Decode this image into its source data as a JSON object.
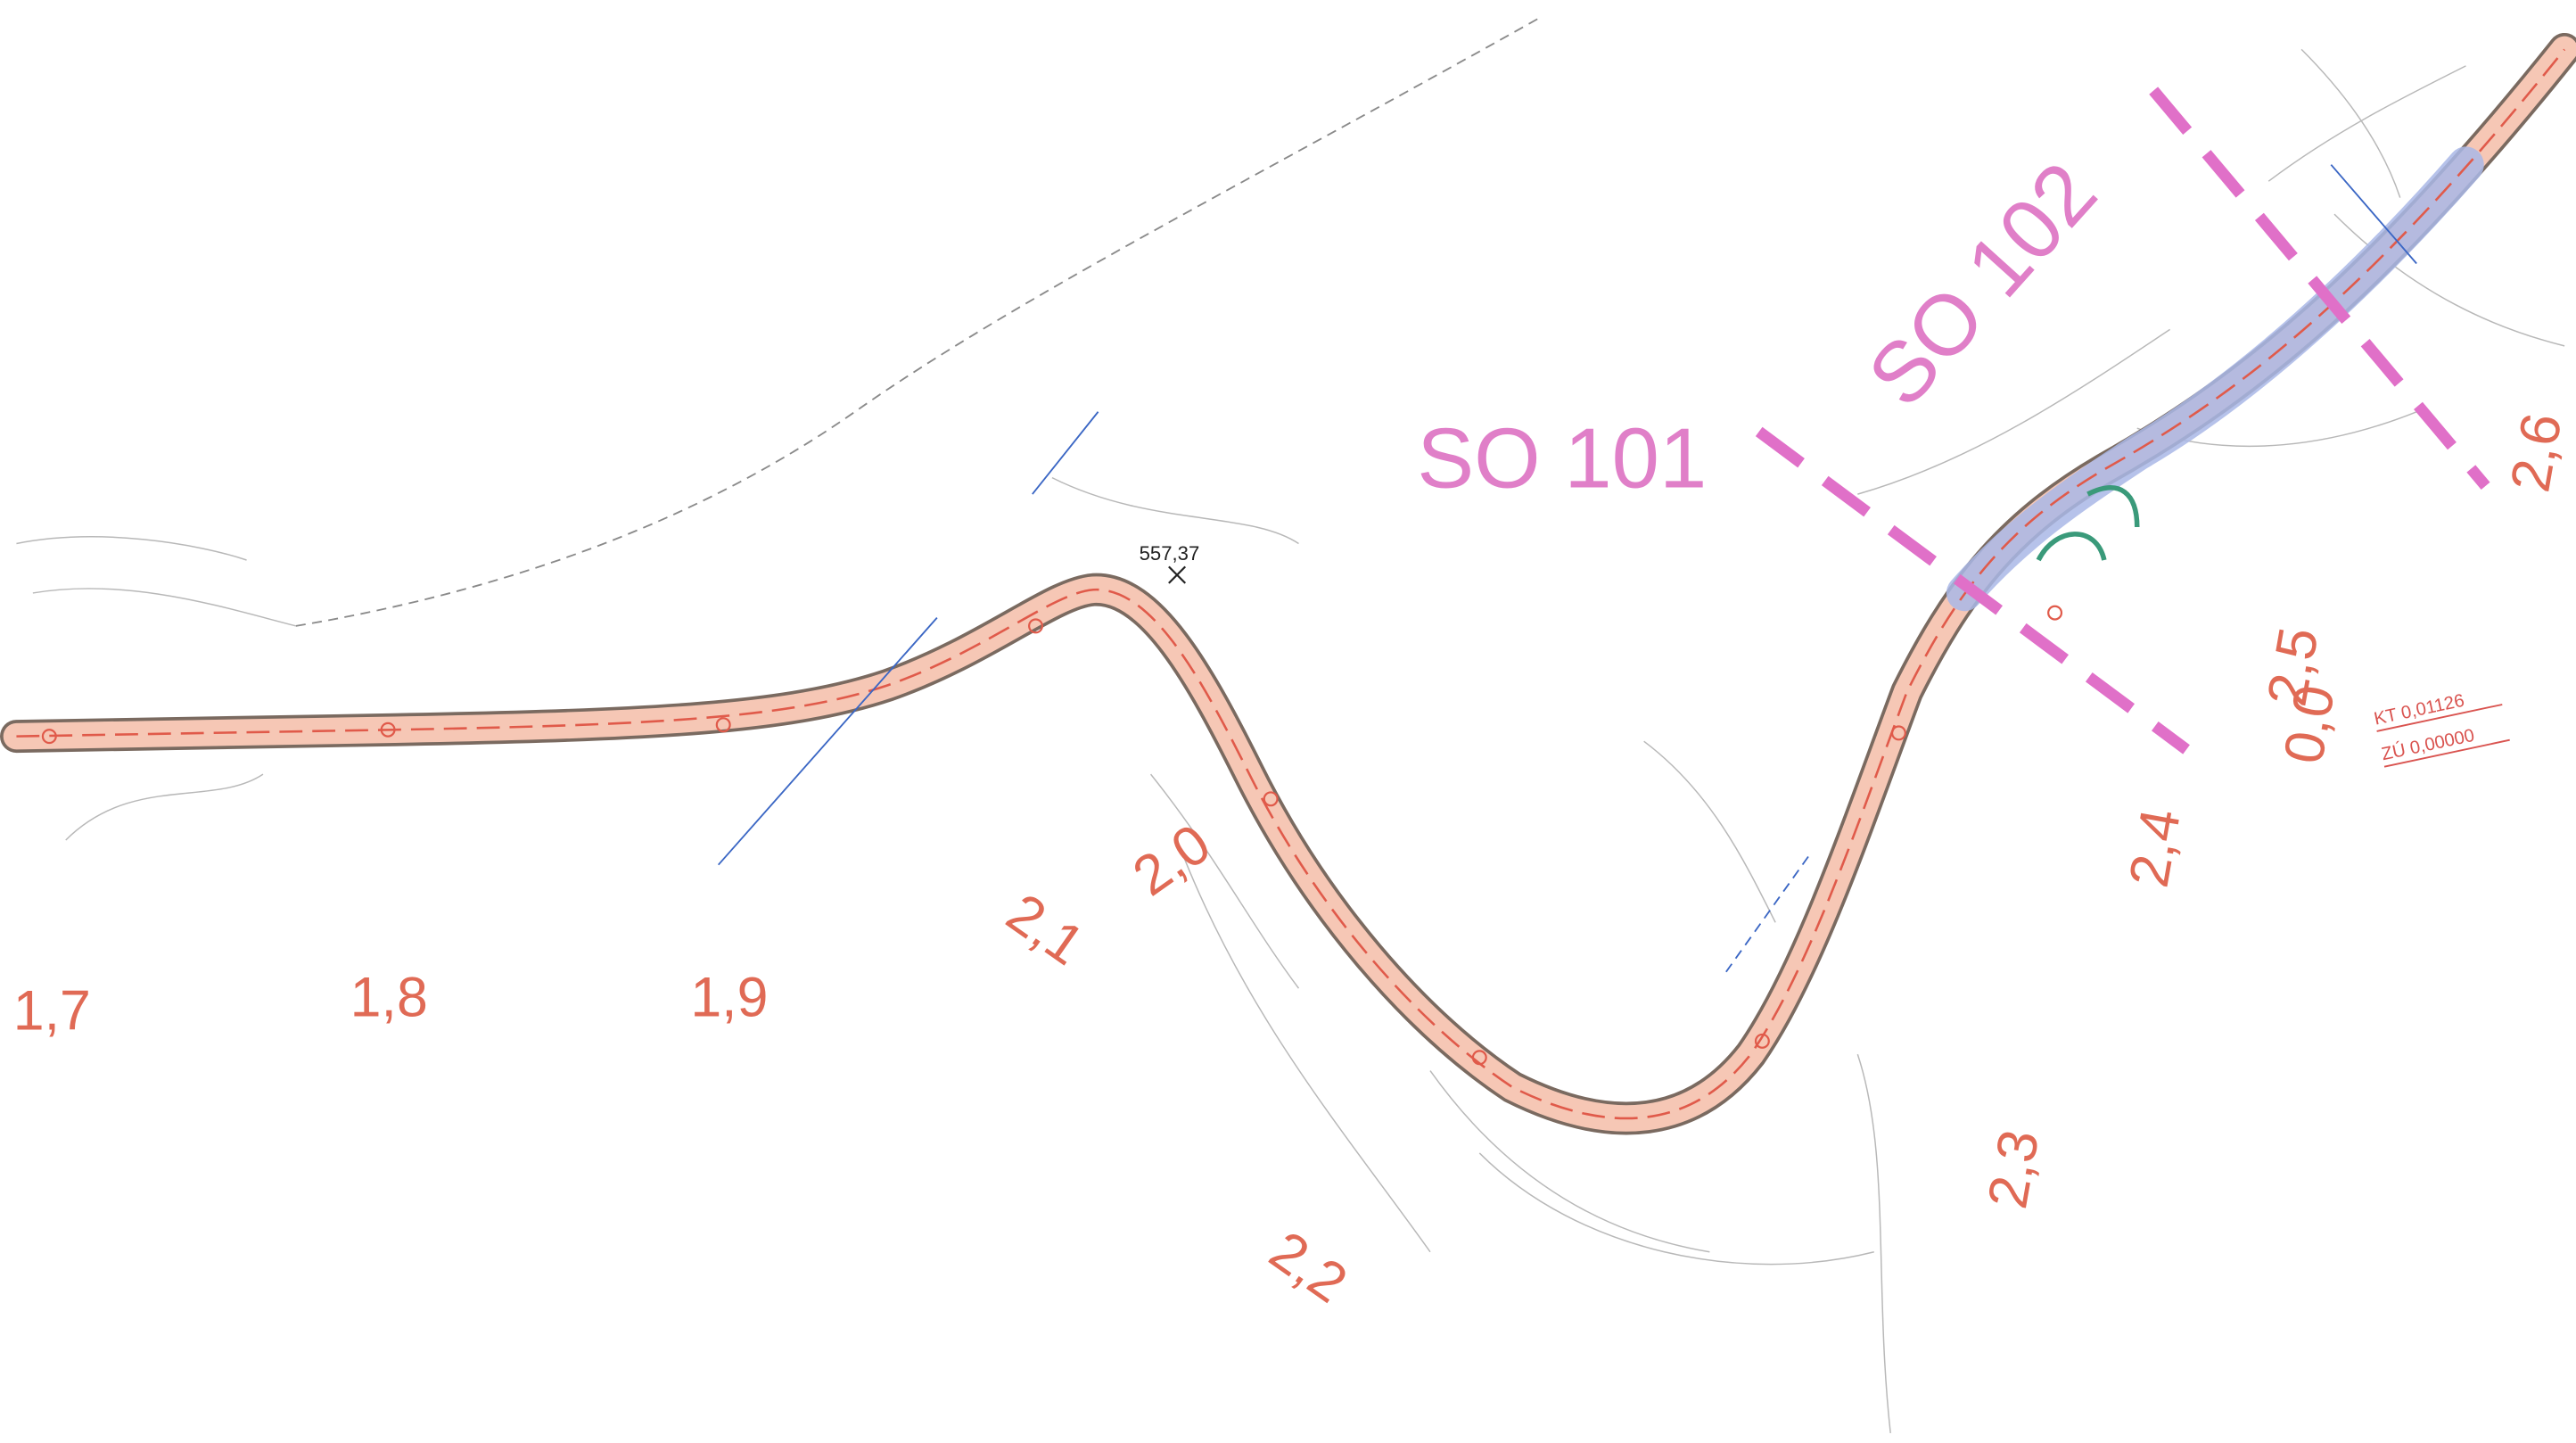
{
  "map": {
    "chainage_labels": [
      "1,7",
      "1,8",
      "1,9",
      "2,0",
      "2,1",
      "2,2",
      "2,3",
      "2,4",
      "2,5",
      "2,6",
      "0,0"
    ],
    "section_labels": [
      "SO 101",
      "SO 102"
    ],
    "elevation_point": "557,37",
    "annotations": {
      "kt": "KT 0,01126",
      "zu": "ZÚ 0,00000"
    },
    "colors": {
      "road_fill": "#f6c7b5",
      "road_edge": "#7a6a60",
      "centerline": "#e05a4a",
      "section_boundary": "#e070c8",
      "so102_roadway": "#a9b7e6",
      "chainage_text": "#e06a55",
      "section_text": "#e07fc8"
    }
  }
}
